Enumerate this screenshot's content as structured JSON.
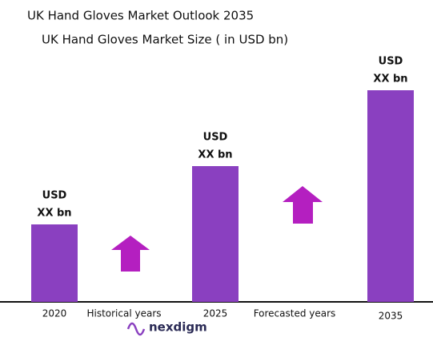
{
  "chart_data": {
    "type": "bar",
    "title": "UK Hand Gloves Market Outlook 2035",
    "subtitle": "UK Hand Gloves Market Size  ( in USD bn)",
    "categories": [
      "2020",
      "2025",
      "2035"
    ],
    "values": [
      97,
      170,
      265
    ],
    "bar_labels": [
      [
        "USD",
        "XX bn"
      ],
      [
        "USD",
        "XX bn"
      ],
      [
        "USD",
        "XX bn"
      ]
    ],
    "period_labels": [
      "Historical years",
      "Forecasted years"
    ],
    "color": "#8a40c0",
    "ylim": [
      0,
      300
    ],
    "logo": "nexdigm"
  }
}
